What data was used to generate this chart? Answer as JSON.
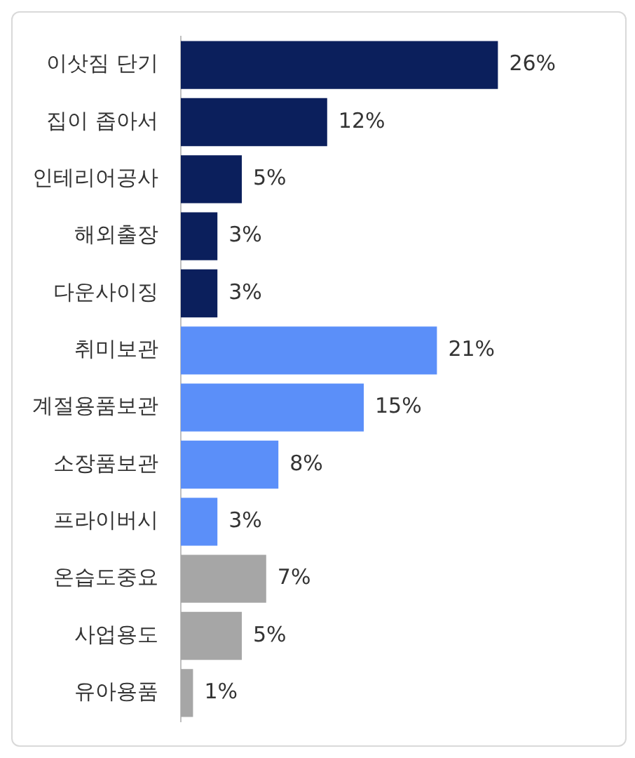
{
  "chart_data": {
    "type": "bar",
    "orientation": "horizontal",
    "categories": [
      "이삿짐 단기",
      "집이 좁아서",
      "인테리어공사",
      "해외출장",
      "다운사이징",
      "취미보관",
      "계절용품보관",
      "소장품보관",
      "프라이버시",
      "온습도중요",
      "사업용도",
      "유아용품"
    ],
    "values": [
      26,
      12,
      5,
      3,
      3,
      21,
      15,
      8,
      3,
      7,
      5,
      1
    ],
    "colors": [
      "#0b1f5c",
      "#0b1f5c",
      "#0b1f5c",
      "#0b1f5c",
      "#0b1f5c",
      "#5b8ff9",
      "#5b8ff9",
      "#5b8ff9",
      "#5b8ff9",
      "#a6a6a6",
      "#a6a6a6",
      "#a6a6a6"
    ],
    "value_labels": [
      "26%",
      "12%",
      "5%",
      "3%",
      "3%",
      "21%",
      "15%",
      "8%",
      "3%",
      "7%",
      "5%",
      "1%"
    ],
    "legend": false
  }
}
